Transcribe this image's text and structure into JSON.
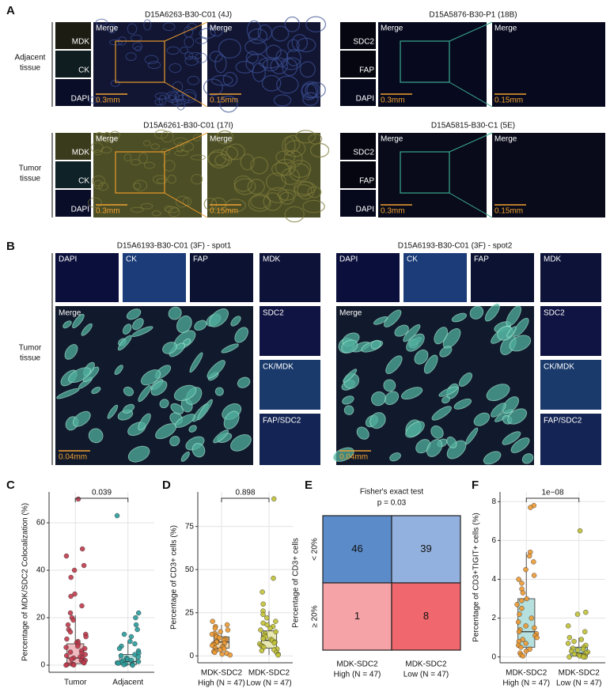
{
  "panel_a": {
    "label": "A",
    "rows": [
      {
        "label": [
          "Adjacent",
          "tissue"
        ]
      },
      {
        "label": [
          "Tumor",
          "tissue"
        ]
      }
    ],
    "blocks": [
      {
        "title": "D15A6263-B30-C01 (4J)",
        "channels": [
          "MDK",
          "CK",
          "DAPI"
        ],
        "merge": "Merge",
        "zoom": "Merge",
        "scales": [
          "0.3mm",
          "0.15mm"
        ]
      },
      {
        "title": "D15A5876-B30-P1 (18B)",
        "channels": [
          "SDC2",
          "FAP",
          "DAPI"
        ],
        "merge": "Merge",
        "zoom": "Merge",
        "scales": [
          "0.3mm",
          "0.15mm"
        ]
      },
      {
        "title": "D15A6261-B30-C01 (17I)",
        "channels": [
          "MDK",
          "CK",
          "DAPI"
        ],
        "merge": "Merge",
        "zoom": "Merge",
        "scales": [
          "0.3mm",
          "0.15mm"
        ]
      },
      {
        "title": "D15A5815-B30-C1 (5E)",
        "channels": [
          "SDC2",
          "FAP",
          "DAPI"
        ],
        "merge": "Merge",
        "zoom": "Merge",
        "scales": [
          "0.3mm",
          "0.15mm"
        ]
      }
    ]
  },
  "panel_b": {
    "label": "B",
    "row_label": [
      "Tumor",
      "tissue"
    ],
    "blocks": [
      {
        "title": "D15A6193-B30-C01 (3F) - spot1",
        "top": [
          "DAPI",
          "CK",
          "FAP",
          "MDK"
        ],
        "side": [
          "SDC2",
          "CK/MDK",
          "FAP/SDC2"
        ],
        "merge": "Merge",
        "scale": "0.04mm"
      },
      {
        "title": "D15A6193-B30-C01 (3F) - spot2",
        "top": [
          "DAPI",
          "CK",
          "FAP",
          "MDK"
        ],
        "side": [
          "SDC2",
          "CK/MDK",
          "FAP/SDC2"
        ],
        "merge": "Merge",
        "scale": "0.04mm"
      }
    ]
  },
  "chart_data": [
    {
      "type": "box",
      "panel_label": "C",
      "y_label": "Percentage of MDK/SDC2 Colocalization (%)",
      "categories": [
        [
          "Tumor"
        ],
        [
          "Adjacent"
        ]
      ],
      "p_value": "0.039",
      "ylim": [
        -3,
        73
      ],
      "yticks": [
        0,
        20,
        40,
        60
      ],
      "grid": true,
      "series": [
        {
          "color": "#c23a4c",
          "box_color": "#f1b9c0",
          "points": [
            70,
            49,
            46,
            42,
            40,
            37,
            30,
            29,
            25,
            22,
            20,
            19,
            17,
            15,
            14,
            13,
            12,
            11,
            10,
            9.5,
            9,
            8,
            7.5,
            7,
            6,
            5.5,
            5,
            4.5,
            4,
            3.5,
            3,
            3,
            2.5,
            2,
            2,
            1.5,
            1,
            1,
            0.5,
            0.3,
            0.2,
            0.1,
            0
          ],
          "box": {
            "whislo": 0,
            "q1": 0.6,
            "med": 3,
            "q3": 9,
            "whishi": 21
          }
        },
        {
          "color": "#2a9c9c",
          "box_color": "#b5e0de",
          "points": [
            63,
            22,
            20,
            17,
            15,
            13,
            12,
            10,
            9,
            8,
            7,
            6,
            5,
            4.5,
            4,
            3.5,
            3,
            2.5,
            2,
            1.8,
            1.5,
            1.2,
            1,
            0.8,
            0.5,
            0.3,
            0.2,
            0.1,
            0
          ],
          "box": {
            "whislo": 0,
            "q1": 0.3,
            "med": 1.5,
            "q3": 4.5,
            "whishi": 10
          }
        }
      ]
    },
    {
      "type": "box",
      "panel_label": "D",
      "y_label": "Percentage of CD3+ cells (%)",
      "categories": [
        [
          "MDK-SDC2",
          "High (N = 47)"
        ],
        [
          "MDK-SDC2",
          "Low (N = 47)"
        ]
      ],
      "p_value": "0.898",
      "ylim": [
        -4,
        95
      ],
      "yticks": [
        0,
        25,
        50,
        75
      ],
      "grid": true,
      "series": [
        {
          "color": "#ee9a32",
          "box_color": "#f8d7a8",
          "points": [
            20,
            18,
            17,
            16,
            15,
            14,
            13,
            12.5,
            12,
            11,
            10.5,
            10,
            9.5,
            9,
            8.5,
            8,
            8,
            7.5,
            7,
            6.5,
            6,
            5.5,
            5,
            4.5,
            4,
            3.5,
            3,
            2.5,
            2,
            1.5,
            1,
            0.5
          ],
          "box": {
            "whislo": 1,
            "q1": 4.5,
            "med": 8,
            "q3": 11,
            "whishi": 18
          }
        },
        {
          "color": "#c2c236",
          "box_color": "#e8e8b0",
          "points": [
            91,
            45,
            37,
            30,
            26,
            24,
            22,
            20,
            19,
            18,
            17,
            16,
            15,
            14,
            13,
            12,
            11,
            10,
            9.5,
            9,
            8,
            7.5,
            7,
            6,
            5.5,
            5,
            4,
            3.5,
            3,
            2,
            1,
            0.5
          ],
          "box": {
            "whislo": 0.5,
            "q1": 4.5,
            "med": 9,
            "q3": 14.5,
            "whishi": 26
          }
        }
      ]
    },
    {
      "type": "heatmap",
      "panel_label": "E",
      "title": "Fisher's exact test",
      "subtitle": "p = 0.03",
      "y_label": "Percentage of CD3+ cells",
      "rows": [
        "< 20%",
        "≥ 20%"
      ],
      "columns": [
        [
          "MDK-SDC2",
          "High (N = 47)"
        ],
        [
          "MDK-SDC2",
          "Low (N = 47)"
        ]
      ],
      "values": [
        [
          46,
          39
        ],
        [
          1,
          8
        ]
      ],
      "colors": [
        [
          "#5b8bc9",
          "#93b1de"
        ],
        [
          "#f5a3a7",
          "#f0676d"
        ]
      ]
    },
    {
      "type": "box",
      "panel_label": "F",
      "y_label": "Percentage of CD3+TIGIT+ cells (%)",
      "categories": [
        [
          "MDK-SDC2",
          "High (N = 47)"
        ],
        [
          "MDK-SDC2",
          "Low (N = 47)"
        ]
      ],
      "p_value": "1e−08",
      "ylim": [
        -0.3,
        8.5
      ],
      "yticks": [
        0,
        2,
        4,
        6,
        8
      ],
      "grid": true,
      "series": [
        {
          "color": "#ee9a32",
          "box_color": "#b5e0de",
          "points": [
            7.8,
            7.7,
            5.4,
            5.2,
            4.9,
            4.5,
            4.2,
            4.0,
            3.8,
            3.5,
            3.3,
            3.0,
            2.9,
            2.7,
            2.5,
            2.2,
            2.0,
            1.8,
            1.6,
            1.5,
            1.4,
            1.3,
            1.2,
            1.1,
            1.0,
            0.9,
            0.8,
            0.7,
            0.6,
            0.5,
            0.4,
            0.3,
            0.2,
            0.1,
            0.05
          ],
          "box": {
            "whislo": 0.05,
            "q1": 0.5,
            "med": 1.3,
            "q3": 3.0,
            "whishi": 5.4
          }
        },
        {
          "color": "#c2c236",
          "box_color": "#b5e0de",
          "points": [
            6.5,
            2.3,
            2.2,
            1.6,
            1.3,
            1.0,
            0.9,
            0.8,
            0.7,
            0.6,
            0.5,
            0.45,
            0.4,
            0.35,
            0.3,
            0.25,
            0.2,
            0.15,
            0.1,
            0.1,
            0.05,
            0.05,
            0,
            0,
            0
          ],
          "box": {
            "whislo": 0,
            "q1": 0.05,
            "med": 0.2,
            "q3": 0.5,
            "whishi": 1.0
          }
        }
      ]
    }
  ]
}
